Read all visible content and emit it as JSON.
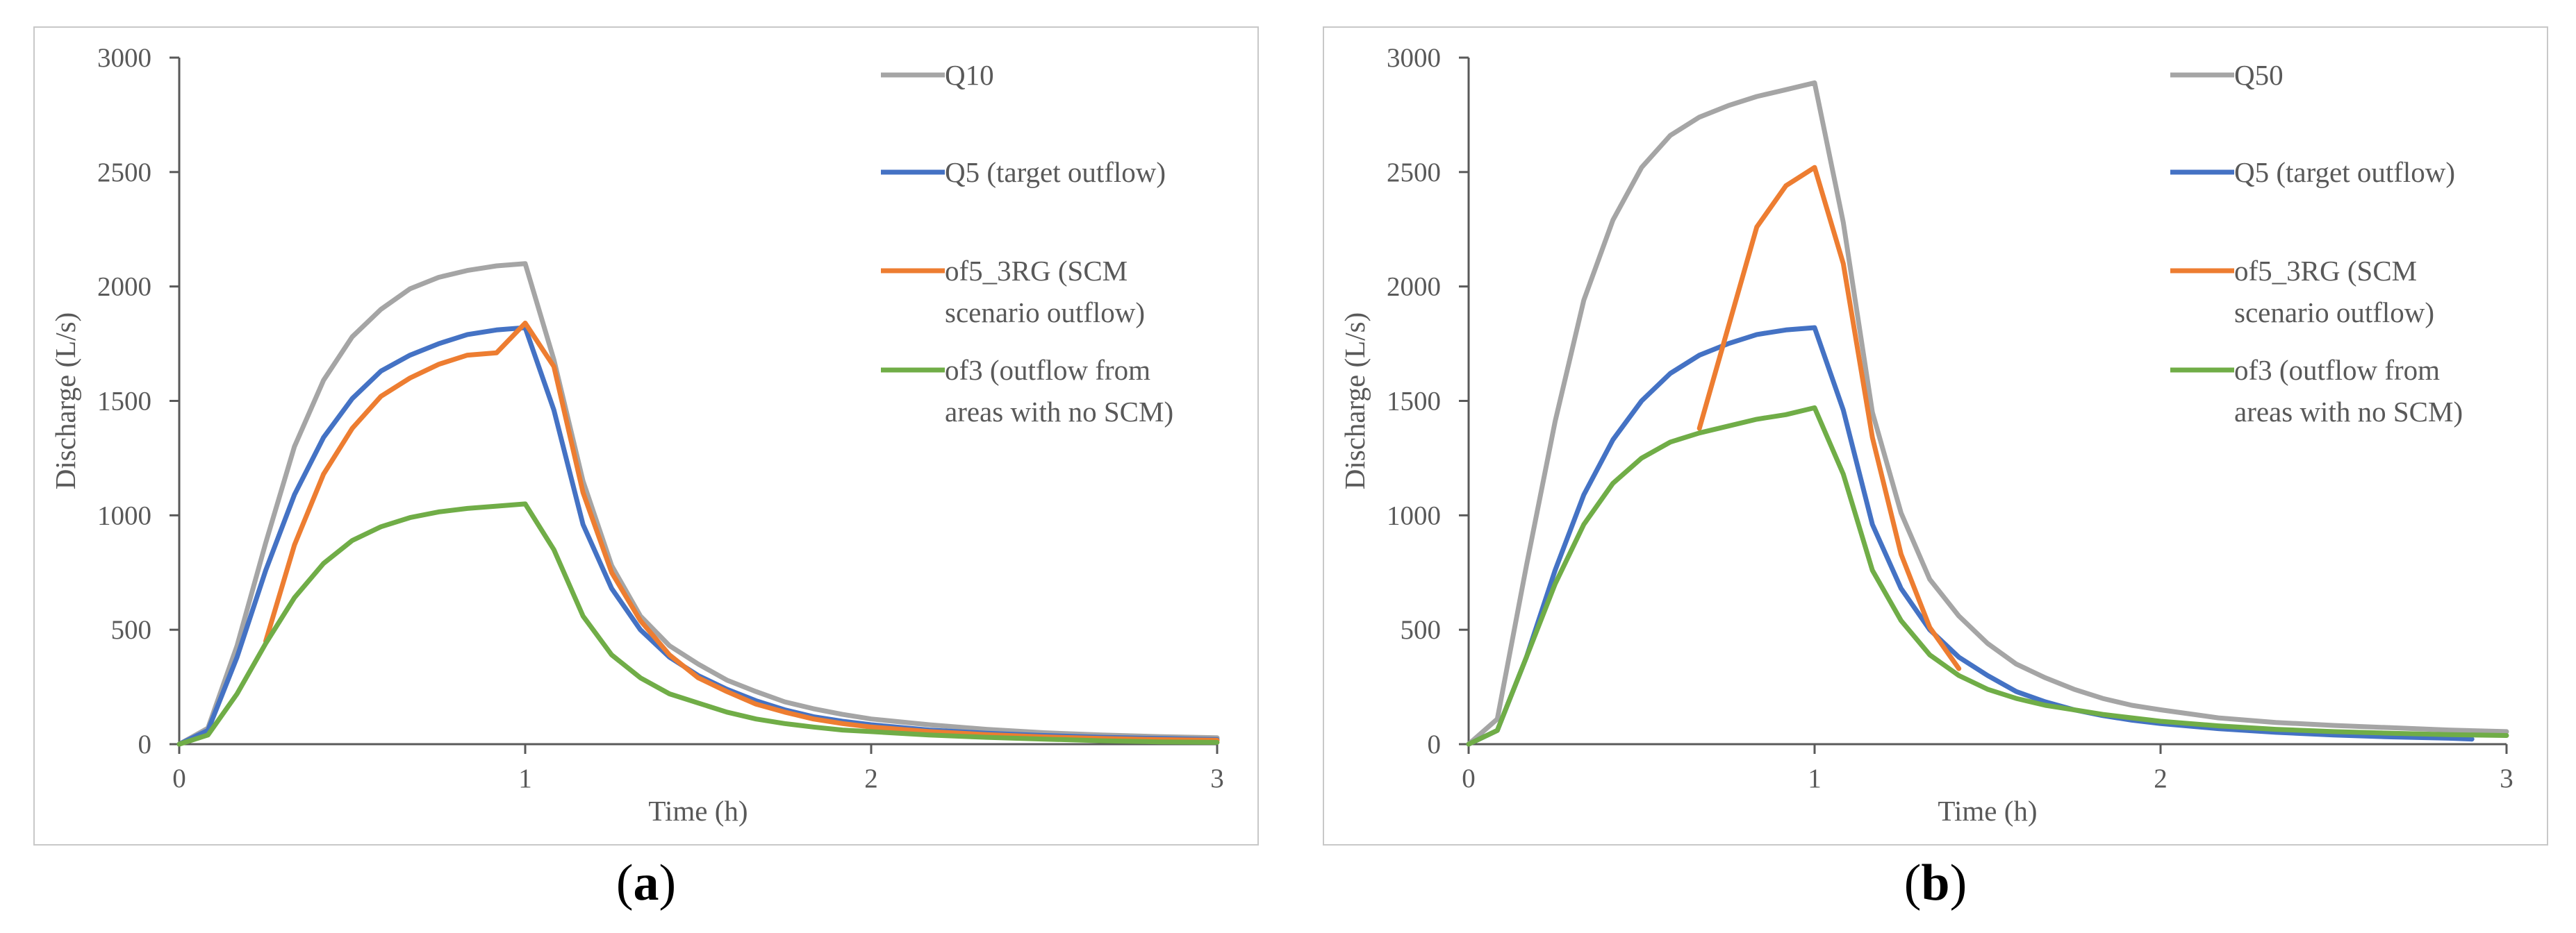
{
  "panels": [
    {
      "label_open": "(",
      "label_letter": "a",
      "label_close": ")"
    },
    {
      "label_open": "(",
      "label_letter": "b",
      "label_close": ")"
    }
  ],
  "chart_data": [
    {
      "type": "line",
      "title": "",
      "xlabel": "Time (h)",
      "ylabel": "Discharge (L/s)",
      "xlim": [
        0,
        3
      ],
      "ylim": [
        0,
        3000
      ],
      "xticks": [
        0,
        1,
        2,
        3
      ],
      "yticks": [
        0,
        500,
        1000,
        1500,
        2000,
        2500,
        3000
      ],
      "grid": false,
      "legend_position": "top-right",
      "series": [
        {
          "name": "Q10",
          "color": "#a5a5a5",
          "x": [
            0,
            0.083,
            0.167,
            0.25,
            0.333,
            0.417,
            0.5,
            0.583,
            0.667,
            0.75,
            0.833,
            0.917,
            1.0,
            1.083,
            1.167,
            1.25,
            1.333,
            1.417,
            1.5,
            1.583,
            1.667,
            1.75,
            1.833,
            1.917,
            2.0,
            2.167,
            2.333,
            2.5,
            2.667,
            2.833,
            3.0
          ],
          "y": [
            0,
            70,
            430,
            880,
            1300,
            1590,
            1780,
            1900,
            1990,
            2040,
            2070,
            2090,
            2100,
            1680,
            1150,
            780,
            560,
            430,
            350,
            280,
            230,
            185,
            155,
            130,
            110,
            85,
            65,
            50,
            40,
            33,
            28
          ]
        },
        {
          "name": "Q5 (target outflow)",
          "color": "#4472c4",
          "x": [
            0,
            0.083,
            0.167,
            0.25,
            0.333,
            0.417,
            0.5,
            0.583,
            0.667,
            0.75,
            0.833,
            0.917,
            1.0,
            1.083,
            1.167,
            1.25,
            1.333,
            1.417,
            1.5,
            1.583,
            1.667,
            1.75,
            1.833,
            1.917,
            2.0,
            2.167,
            2.333,
            2.5,
            2.667,
            2.833,
            3.0
          ],
          "y": [
            0,
            60,
            380,
            760,
            1090,
            1340,
            1510,
            1630,
            1700,
            1750,
            1790,
            1810,
            1820,
            1460,
            960,
            680,
            500,
            380,
            300,
            240,
            190,
            150,
            120,
            100,
            85,
            62,
            48,
            38,
            30,
            25,
            20
          ]
        },
        {
          "name": "of5_3RG (SCM scenario outflow)",
          "color": "#ed7d31",
          "x": [
            0.25,
            0.333,
            0.417,
            0.5,
            0.583,
            0.667,
            0.75,
            0.833,
            0.917,
            1.0,
            1.083,
            1.167,
            1.25,
            1.333,
            1.417,
            1.5,
            1.583,
            1.667,
            1.75,
            1.833,
            1.917,
            2.0,
            2.167,
            2.333,
            2.5,
            2.667,
            2.833,
            3.0
          ],
          "y": [
            450,
            870,
            1180,
            1380,
            1520,
            1600,
            1660,
            1700,
            1710,
            1840,
            1650,
            1100,
            750,
            540,
            390,
            290,
            230,
            175,
            140,
            110,
            90,
            75,
            55,
            42,
            32,
            25,
            20,
            17
          ]
        },
        {
          "name": "of3 (outflow from areas with no SCM)",
          "color": "#70ad47",
          "x": [
            0,
            0.083,
            0.167,
            0.25,
            0.333,
            0.417,
            0.5,
            0.583,
            0.667,
            0.75,
            0.833,
            0.917,
            1.0,
            1.083,
            1.167,
            1.25,
            1.333,
            1.417,
            1.5,
            1.583,
            1.667,
            1.75,
            1.833,
            1.917,
            2.0,
            2.167,
            2.333,
            2.5,
            2.667,
            2.833,
            3.0
          ],
          "y": [
            0,
            40,
            220,
            440,
            640,
            790,
            890,
            950,
            990,
            1015,
            1030,
            1040,
            1050,
            850,
            560,
            390,
            290,
            220,
            180,
            140,
            110,
            90,
            75,
            62,
            55,
            40,
            30,
            22,
            15,
            10,
            8
          ]
        }
      ]
    },
    {
      "type": "line",
      "title": "",
      "xlabel": "Time (h)",
      "ylabel": "Discharge (L/s)",
      "xlim": [
        0,
        3
      ],
      "ylim": [
        0,
        3000
      ],
      "xticks": [
        0,
        1,
        2,
        3
      ],
      "yticks": [
        0,
        500,
        1000,
        1500,
        2000,
        2500,
        3000
      ],
      "grid": false,
      "legend_position": "top-right",
      "series": [
        {
          "name": "Q50",
          "color": "#a5a5a5",
          "x": [
            0,
            0.083,
            0.167,
            0.25,
            0.333,
            0.417,
            0.5,
            0.583,
            0.667,
            0.75,
            0.833,
            0.917,
            1.0,
            1.083,
            1.167,
            1.25,
            1.333,
            1.417,
            1.5,
            1.583,
            1.667,
            1.75,
            1.833,
            1.917,
            2.0,
            2.167,
            2.333,
            2.5,
            2.667,
            2.833,
            3.0
          ],
          "y": [
            0,
            110,
            780,
            1410,
            1940,
            2290,
            2520,
            2660,
            2740,
            2790,
            2830,
            2860,
            2890,
            2280,
            1450,
            1010,
            720,
            560,
            440,
            350,
            290,
            240,
            200,
            170,
            150,
            115,
            95,
            82,
            72,
            62,
            55
          ]
        },
        {
          "name": "Q5 (target outflow)",
          "color": "#4472c4",
          "x": [
            0,
            0.083,
            0.167,
            0.25,
            0.333,
            0.417,
            0.5,
            0.583,
            0.667,
            0.75,
            0.833,
            0.917,
            1.0,
            1.083,
            1.167,
            1.25,
            1.333,
            1.417,
            1.5,
            1.583,
            1.667,
            1.75,
            1.833,
            1.917,
            2.0,
            2.167,
            2.333,
            2.5,
            2.667,
            2.833,
            2.9
          ],
          "y": [
            0,
            60,
            380,
            760,
            1090,
            1330,
            1500,
            1620,
            1700,
            1750,
            1790,
            1810,
            1820,
            1460,
            960,
            680,
            500,
            380,
            300,
            230,
            185,
            150,
            125,
            105,
            90,
            68,
            52,
            40,
            32,
            26,
            22
          ]
        },
        {
          "name": "of5_3RG (SCM scenario outflow)",
          "color": "#ed7d31",
          "x": [
            0.667,
            0.75,
            0.833,
            0.917,
            1.0,
            1.083,
            1.167,
            1.25,
            1.333,
            1.417
          ],
          "y": [
            1380,
            1820,
            2260,
            2440,
            2520,
            2100,
            1340,
            830,
            510,
            330
          ]
        },
        {
          "name": "of3 (outflow from areas with no SCM)",
          "color": "#70ad47",
          "x": [
            0,
            0.083,
            0.167,
            0.25,
            0.333,
            0.417,
            0.5,
            0.583,
            0.667,
            0.75,
            0.833,
            0.917,
            1.0,
            1.083,
            1.167,
            1.25,
            1.333,
            1.417,
            1.5,
            1.583,
            1.667,
            1.75,
            1.833,
            1.917,
            2.0,
            2.167,
            2.333,
            2.5,
            2.667,
            2.833,
            3.0
          ],
          "y": [
            0,
            60,
            380,
            700,
            960,
            1140,
            1250,
            1320,
            1360,
            1390,
            1420,
            1440,
            1470,
            1180,
            760,
            540,
            390,
            300,
            240,
            200,
            170,
            150,
            130,
            115,
            100,
            80,
            65,
            55,
            48,
            42,
            38
          ]
        }
      ]
    }
  ]
}
